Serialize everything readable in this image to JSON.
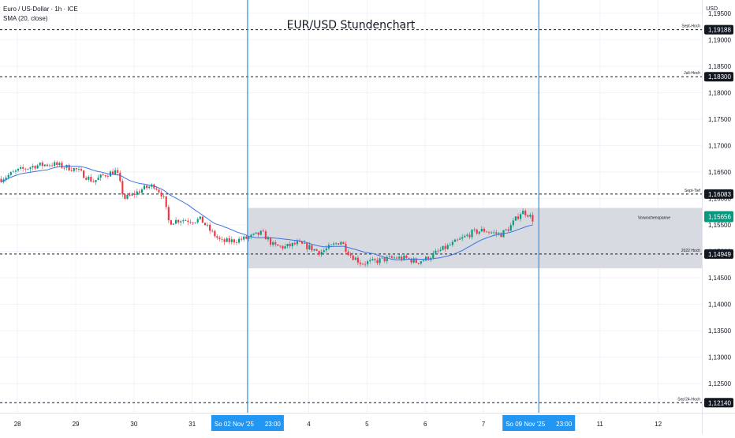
{
  "legend": {
    "symbol_line": "Euro / US-Dollar · 1h · ICE",
    "indicator_line": "SMA (20, close)"
  },
  "currency": "USD",
  "chart_data": {
    "type": "candlestick",
    "title": "EUR/USD Stundenchart",
    "ylim": [
      1.1195,
      1.1975
    ],
    "y_ticks": [
      "1,12500",
      "1,13000",
      "1,13500",
      "1,14000",
      "1,14500",
      "1,15000",
      "1,15500",
      "1,16000",
      "1,16500",
      "1,17000",
      "1,17500",
      "1,18000",
      "1,18500",
      "1,19000",
      "1,19500"
    ],
    "y_tick_values": [
      1.125,
      1.13,
      1.135,
      1.14,
      1.145,
      1.15,
      1.155,
      1.16,
      1.165,
      1.17,
      1.175,
      1.18,
      1.185,
      1.19,
      1.195
    ],
    "x_labels": [
      {
        "label": "28",
        "pos": 0.0
      },
      {
        "label": "29",
        "pos": 1.0
      },
      {
        "label": "30",
        "pos": 2.0
      },
      {
        "label": "31",
        "pos": 3.0
      },
      {
        "label": "4",
        "pos": 5.0
      },
      {
        "label": "5",
        "pos": 6.0
      },
      {
        "label": "6",
        "pos": 7.0
      },
      {
        "label": "7",
        "pos": 8.0
      },
      {
        "label": "11",
        "pos": 10.0
      },
      {
        "label": "12",
        "pos": 11.0
      }
    ],
    "x_range": [
      -0.3,
      11.75
    ],
    "highlighted_dates": [
      {
        "date": "So 02 Nov '25",
        "time": "23:00",
        "pos": 3.95
      },
      {
        "date": "So 09 Nov '25",
        "time": "23:00",
        "pos": 8.95
      }
    ],
    "levels": [
      {
        "name": "Sept-Hoch",
        "value": 1.19188,
        "label": "1,19188"
      },
      {
        "name": "Juli-Hoch",
        "value": 1.183,
        "label": "1,18300"
      },
      {
        "name": "Sept-Tief",
        "value": 1.16083,
        "label": "1,16083"
      },
      {
        "name": "2022 Hoch",
        "value": 1.14949,
        "label": "1,14949"
      },
      {
        "name": "Sep'24-Hoch",
        "value": 1.1214,
        "label": "1,12140"
      }
    ],
    "range_box": {
      "name": "Vorwochenspanne",
      "top": 1.1582,
      "bottom": 1.1468,
      "from": 3.95,
      "to": 11.75
    },
    "current_price": {
      "value": 1.15656,
      "label": "1,15656"
    },
    "close_anchors": [
      [
        -0.3,
        1.1636
      ],
      [
        0.0,
        1.1652
      ],
      [
        0.3,
        1.1662
      ],
      [
        0.6,
        1.1665
      ],
      [
        1.0,
        1.1655
      ],
      [
        1.3,
        1.1632
      ],
      [
        1.5,
        1.1645
      ],
      [
        1.7,
        1.1652
      ],
      [
        1.83,
        1.16
      ],
      [
        1.95,
        1.1605
      ],
      [
        2.15,
        1.1618
      ],
      [
        2.35,
        1.1625
      ],
      [
        2.5,
        1.1605
      ],
      [
        2.6,
        1.1555
      ],
      [
        2.8,
        1.156
      ],
      [
        3.0,
        1.1558
      ],
      [
        3.15,
        1.156
      ],
      [
        3.3,
        1.154
      ],
      [
        3.5,
        1.1518
      ],
      [
        3.7,
        1.152
      ],
      [
        3.95,
        1.1525
      ],
      [
        4.2,
        1.1535
      ],
      [
        4.4,
        1.151
      ],
      [
        4.6,
        1.1508
      ],
      [
        4.8,
        1.1515
      ],
      [
        5.0,
        1.1508
      ],
      [
        5.2,
        1.1498
      ],
      [
        5.4,
        1.151
      ],
      [
        5.55,
        1.152
      ],
      [
        5.7,
        1.1495
      ],
      [
        5.9,
        1.1478
      ],
      [
        6.1,
        1.148
      ],
      [
        6.3,
        1.1485
      ],
      [
        6.5,
        1.1488
      ],
      [
        6.7,
        1.1486
      ],
      [
        6.85,
        1.148
      ],
      [
        7.0,
        1.1485
      ],
      [
        7.2,
        1.1498
      ],
      [
        7.4,
        1.151
      ],
      [
        7.6,
        1.1522
      ],
      [
        7.8,
        1.1535
      ],
      [
        8.0,
        1.154
      ],
      [
        8.15,
        1.1535
      ],
      [
        8.3,
        1.1532
      ],
      [
        8.45,
        1.1545
      ],
      [
        8.55,
        1.156
      ],
      [
        8.65,
        1.1575
      ],
      [
        8.75,
        1.1572
      ],
      [
        8.85,
        1.156
      ]
    ],
    "colors": {
      "up": "#089981",
      "down": "#f23645",
      "sma": "#3a74e0",
      "vline": "#2196f3",
      "box": "#d1d4dc",
      "price_tag": "#089981",
      "level_tag": "#131722"
    }
  }
}
